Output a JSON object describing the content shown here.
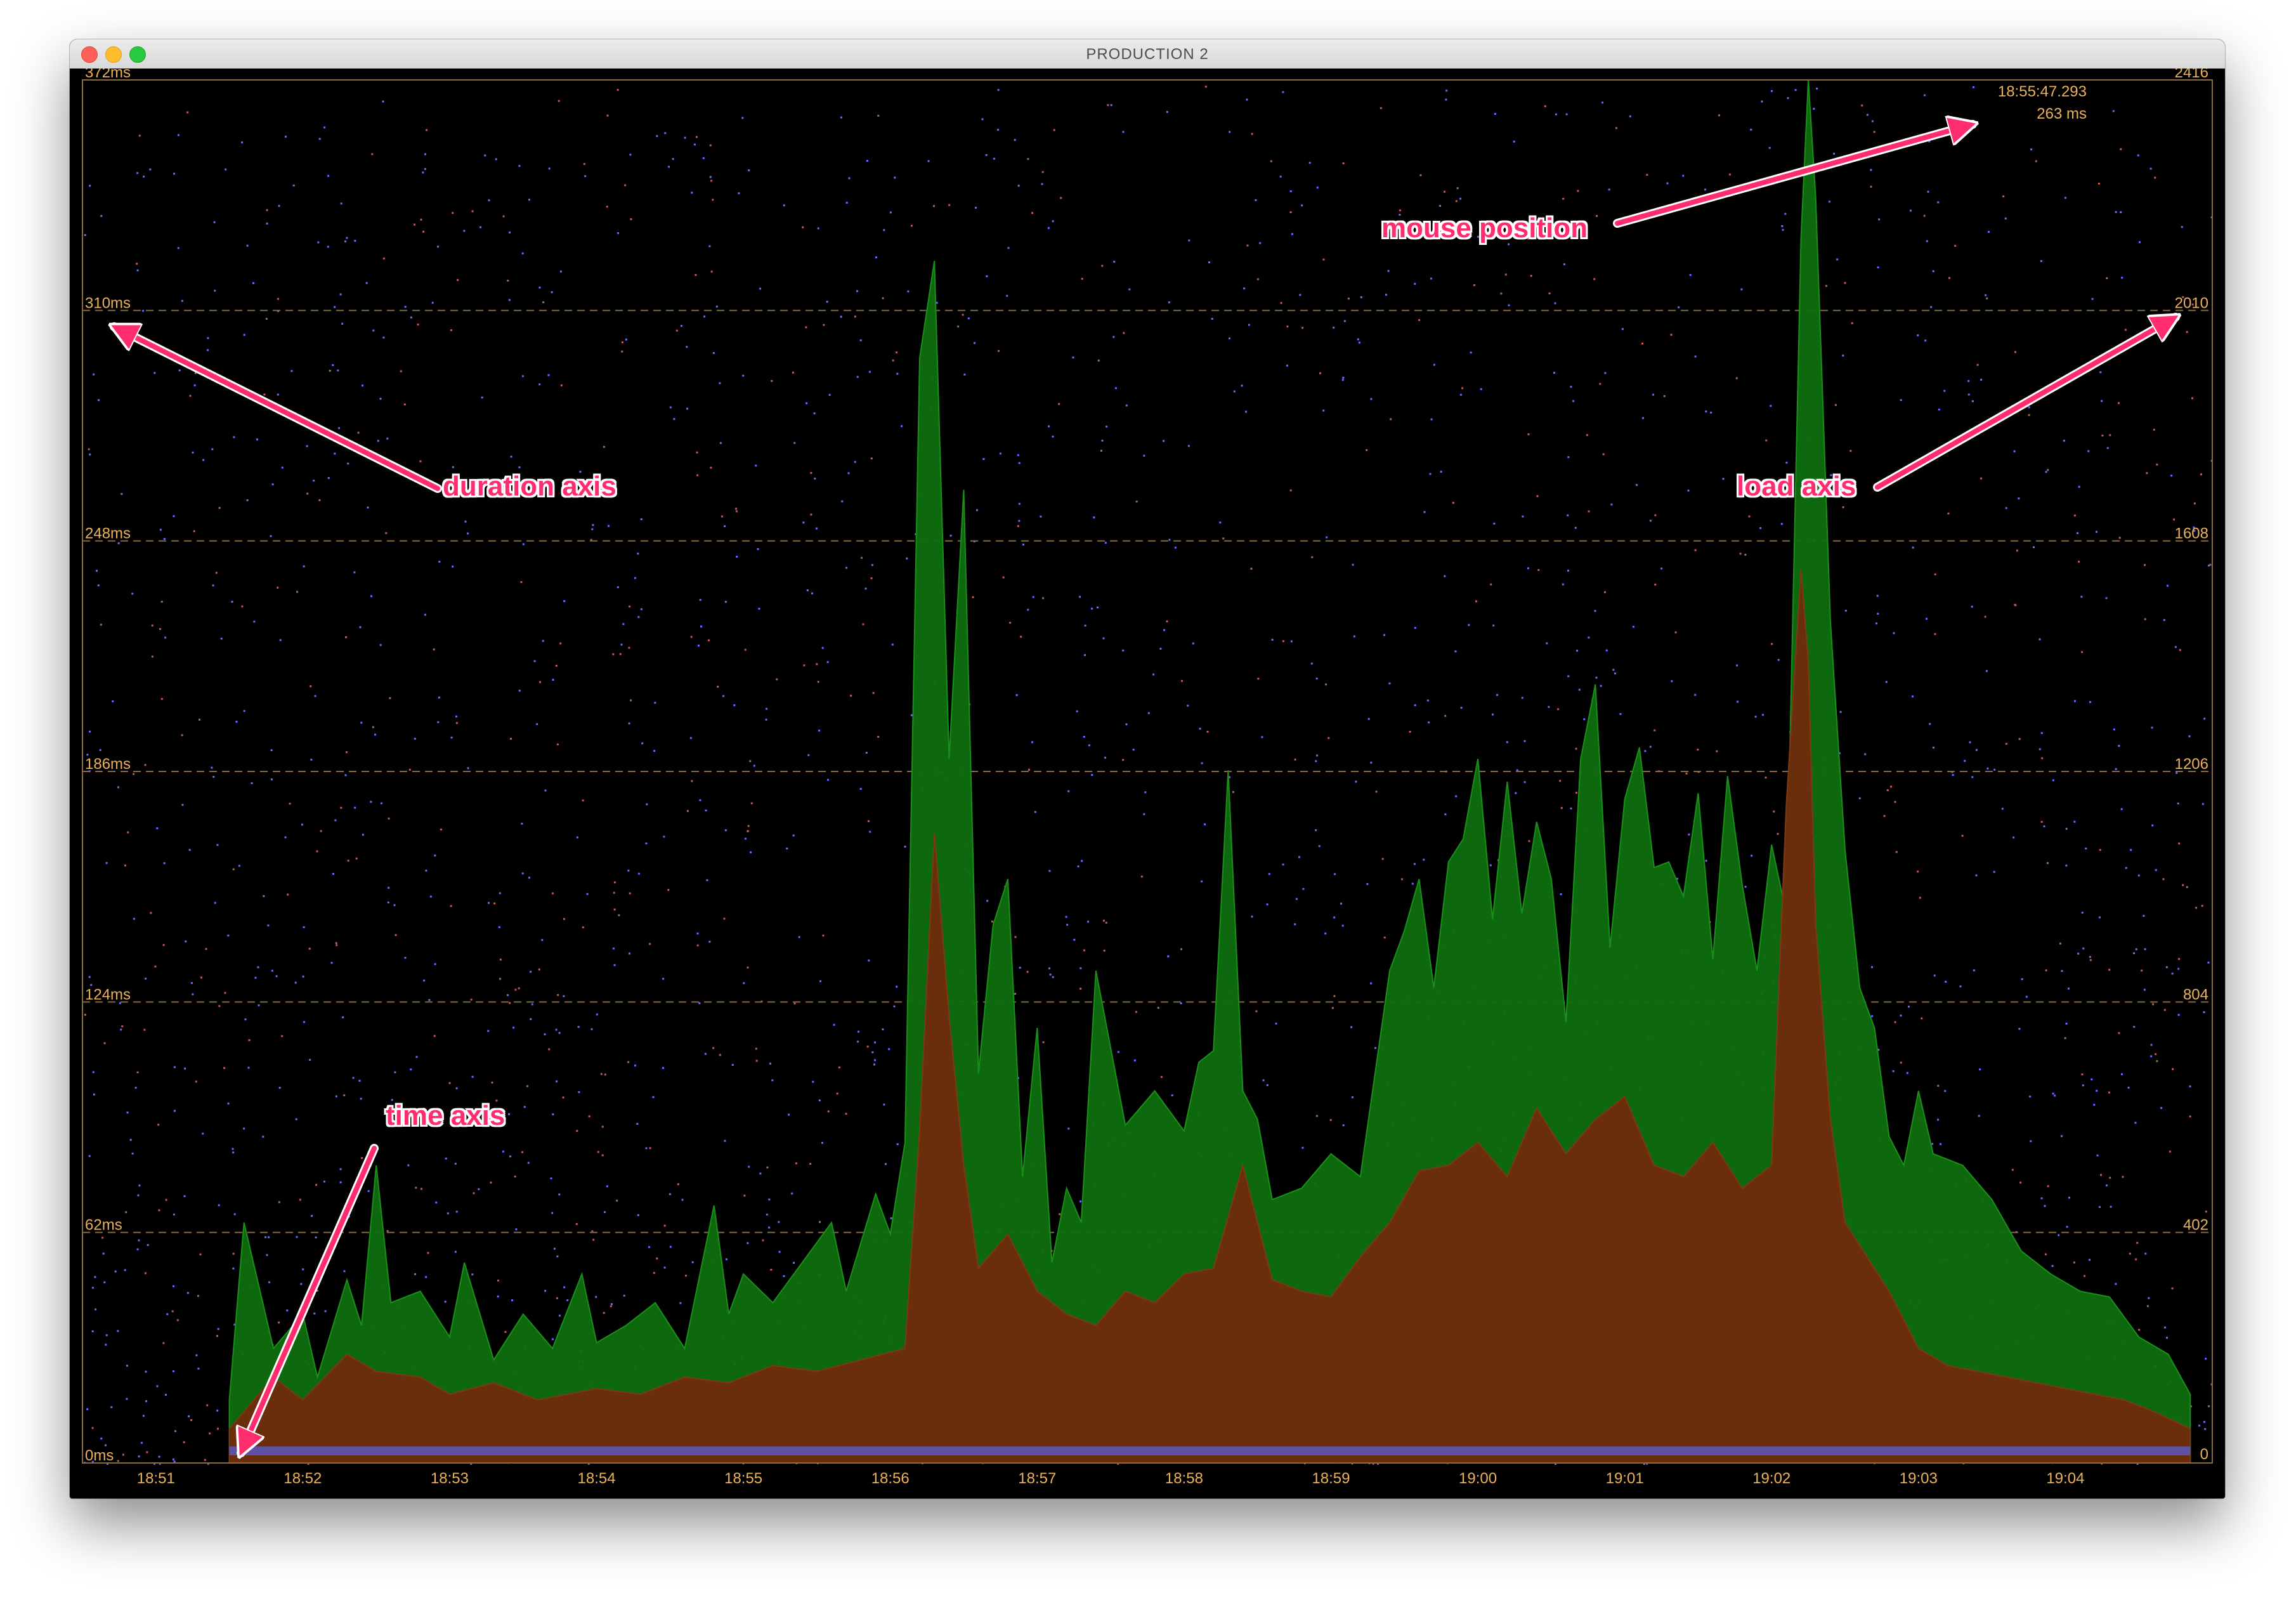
{
  "window": {
    "title": "PRODUCTION 2"
  },
  "colors": {
    "background": "#000000",
    "axis_text": "#e9b15c",
    "gridline": "#8a6a3c",
    "load_area": "#0f6e0f",
    "duration_area": "#6b2e0d",
    "baseline": "#5c5cd6",
    "dot_blue": "#6a6aff",
    "dot_red": "#c05a5a",
    "annotation": "#ff2d6e"
  },
  "readout": {
    "time": "18:55:47.293",
    "value": "263 ms"
  },
  "annotations": {
    "mouse_position": "mouse position",
    "duration_axis": "duration axis",
    "load_axis": "load axis",
    "time_axis": "time axis"
  },
  "chart_data": {
    "type": "area",
    "title": "",
    "xlabel": "",
    "ylabel_left": "",
    "ylabel_right": "",
    "x_ticks": [
      "18:51",
      "18:52",
      "18:53",
      "18:54",
      "18:55",
      "18:56",
      "18:57",
      "18:58",
      "18:59",
      "19:00",
      "19:01",
      "19:02",
      "19:03",
      "19:04"
    ],
    "y_left_ticks": [
      "0ms",
      "62ms",
      "124ms",
      "186ms",
      "248ms",
      "310ms",
      "372ms"
    ],
    "y_right_ticks": [
      "0",
      "402",
      "804",
      "1206",
      "1608",
      "2010",
      "2416"
    ],
    "y_left_range": [
      0,
      372
    ],
    "y_right_range": [
      0,
      2416
    ],
    "x_range_minutes": [
      50.5,
      65.0
    ],
    "grid": "dashed horizontal lines at each y tick",
    "series": [
      {
        "color": "#0f6e0f",
        "axis": "right",
        "x": [
          51.5,
          51.6,
          51.8,
          52.0,
          52.1,
          52.3,
          52.4,
          52.5,
          52.6,
          52.8,
          53.0,
          53.1,
          53.3,
          53.5,
          53.7,
          53.9,
          54.0,
          54.2,
          54.4,
          54.6,
          54.8,
          54.9,
          55.0,
          55.2,
          55.4,
          55.6,
          55.7,
          55.9,
          56.0,
          56.1,
          56.2,
          56.3,
          56.4,
          56.5,
          56.6,
          56.7,
          56.8,
          56.9,
          57.0,
          57.1,
          57.2,
          57.3,
          57.4,
          57.6,
          57.8,
          58.0,
          58.1,
          58.2,
          58.3,
          58.4,
          58.5,
          58.6,
          58.8,
          59.0,
          59.2,
          59.4,
          59.5,
          59.6,
          59.7,
          59.8,
          59.9,
          60.0,
          60.1,
          60.2,
          60.3,
          60.4,
          60.5,
          60.6,
          60.7,
          60.8,
          60.9,
          61.0,
          61.1,
          61.2,
          61.3,
          61.4,
          61.5,
          61.6,
          61.7,
          61.8,
          61.9,
          62.0,
          62.1,
          62.2,
          62.25,
          62.3,
          62.4,
          62.5,
          62.6,
          62.7,
          62.8,
          62.9,
          63.0,
          63.1,
          63.3,
          63.5,
          63.7,
          63.9,
          64.1,
          64.3,
          64.5,
          64.7,
          64.85
        ],
        "values": [
          110,
          420,
          200,
          260,
          150,
          320,
          240,
          520,
          280,
          300,
          220,
          350,
          180,
          260,
          200,
          330,
          210,
          240,
          280,
          200,
          450,
          260,
          330,
          280,
          350,
          420,
          300,
          470,
          400,
          560,
          1930,
          2100,
          1230,
          1700,
          680,
          940,
          1020,
          500,
          760,
          350,
          480,
          420,
          860,
          590,
          650,
          580,
          700,
          720,
          1210,
          650,
          600,
          460,
          480,
          540,
          500,
          860,
          930,
          1020,
          830,
          1050,
          1090,
          1230,
          950,
          1190,
          960,
          1120,
          1020,
          770,
          1230,
          1360,
          900,
          1160,
          1250,
          1040,
          1050,
          990,
          1170,
          880,
          1200,
          1010,
          860,
          1080,
          960,
          2140,
          2416,
          2210,
          1470,
          1070,
          830,
          760,
          570,
          520,
          650,
          540,
          520,
          460,
          370,
          330,
          300,
          290,
          220,
          190,
          120
        ],
        "name": ""
      },
      {
        "color": "#6b2e0d",
        "axis": "right",
        "x": [
          51.5,
          51.8,
          52.0,
          52.3,
          52.5,
          52.8,
          53.0,
          53.3,
          53.6,
          54.0,
          54.3,
          54.6,
          54.9,
          55.2,
          55.5,
          55.8,
          56.1,
          56.2,
          56.3,
          56.4,
          56.5,
          56.6,
          56.8,
          57.0,
          57.2,
          57.4,
          57.6,
          57.8,
          58.0,
          58.2,
          58.4,
          58.6,
          58.8,
          59.0,
          59.2,
          59.4,
          59.6,
          59.8,
          60.0,
          60.2,
          60.4,
          60.6,
          60.8,
          61.0,
          61.2,
          61.4,
          61.6,
          61.8,
          62.0,
          62.1,
          62.2,
          62.25,
          62.3,
          62.4,
          62.5,
          62.6,
          62.8,
          63.0,
          63.2,
          63.4,
          63.6,
          63.8,
          64.0,
          64.2,
          64.4,
          64.6,
          64.85
        ],
        "values": [
          60,
          150,
          110,
          190,
          160,
          150,
          120,
          140,
          110,
          130,
          120,
          150,
          140,
          170,
          160,
          180,
          200,
          580,
          1100,
          780,
          520,
          340,
          400,
          300,
          260,
          240,
          300,
          280,
          330,
          340,
          520,
          320,
          300,
          290,
          360,
          420,
          510,
          520,
          560,
          500,
          620,
          540,
          600,
          640,
          520,
          500,
          560,
          480,
          520,
          1150,
          1560,
          1400,
          940,
          600,
          420,
          380,
          300,
          200,
          170,
          160,
          150,
          140,
          130,
          120,
          110,
          90,
          60
        ],
        "name": ""
      }
    ]
  }
}
